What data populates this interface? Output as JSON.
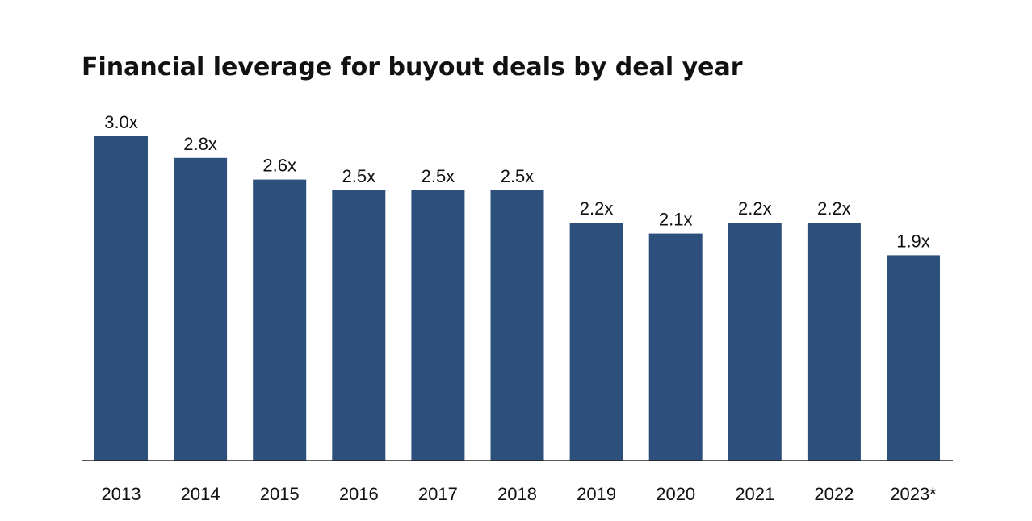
{
  "chart_data": {
    "type": "bar",
    "title": "Financial leverage for buyout deals by deal year",
    "xlabel": "",
    "ylabel": "",
    "categories": [
      "2013",
      "2014",
      "2015",
      "2016",
      "2017",
      "2018",
      "2019",
      "2020",
      "2021",
      "2022",
      "2023*"
    ],
    "values": [
      3.0,
      2.8,
      2.6,
      2.5,
      2.5,
      2.5,
      2.2,
      2.1,
      2.2,
      2.2,
      1.9
    ],
    "value_labels": [
      "3.0x",
      "2.8x",
      "2.6x",
      "2.5x",
      "2.5x",
      "2.5x",
      "2.2x",
      "2.1x",
      "2.2x",
      "2.2x",
      "1.9x"
    ],
    "ylim": [
      0,
      3.0
    ],
    "grid": false,
    "legend": "none",
    "colors": {
      "bar": "#2c4f7c",
      "axis": "#222222",
      "text": "#111111"
    }
  }
}
